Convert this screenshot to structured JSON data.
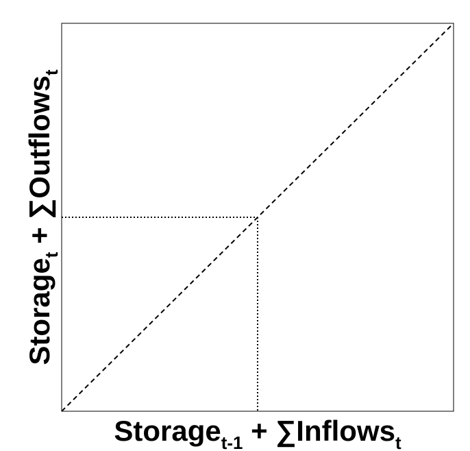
{
  "chart_data": {
    "type": "line",
    "title": "",
    "xlabel": {
      "main": "Storage",
      "sub": "t-1",
      "rest": " + ∑Inflows",
      "rest_sub": "t"
    },
    "ylabel": {
      "main": "Storage",
      "sub": "t",
      "rest": " + ∑Outflows",
      "rest_sub": "t"
    },
    "xlim": [
      0,
      1
    ],
    "ylim": [
      0,
      1
    ],
    "grid": false,
    "legend": "none",
    "tick_labels": false,
    "series": [
      {
        "style": "dashed",
        "color": "#000000",
        "x": [
          0,
          1
        ],
        "y": [
          0,
          1
        ]
      }
    ],
    "reference_point": {
      "x": 0.5,
      "y": 0.5,
      "style": "dotted",
      "color": "#000000"
    }
  }
}
